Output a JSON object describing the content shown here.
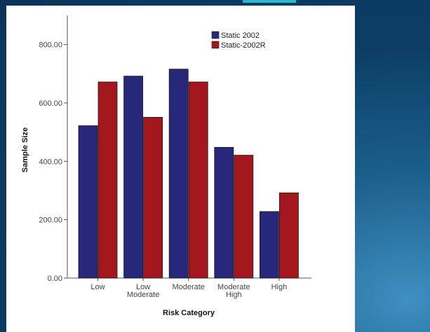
{
  "chart_data": {
    "type": "bar",
    "categories": [
      [
        "Low"
      ],
      [
        "Low",
        "Moderate"
      ],
      [
        "Moderate"
      ],
      [
        "Moderate",
        "High"
      ],
      [
        "High"
      ]
    ],
    "series": [
      {
        "name": "Static 2002",
        "color": "#27287a",
        "values": [
          522,
          692,
          716,
          448,
          228
        ]
      },
      {
        "name": "Static-2002R",
        "color": "#a3161d",
        "values": [
          672,
          551,
          672,
          421,
          292
        ]
      }
    ],
    "xlabel": "Risk Category",
    "ylabel": "Sample Size",
    "ylim": [
      0,
      900
    ],
    "yticks": [
      0,
      200,
      400,
      600,
      800
    ],
    "ytick_labels": [
      "0.00",
      "200.00",
      "400.00",
      "600.00",
      "800.00"
    ],
    "legend_position": "top-right",
    "grid": false
  }
}
